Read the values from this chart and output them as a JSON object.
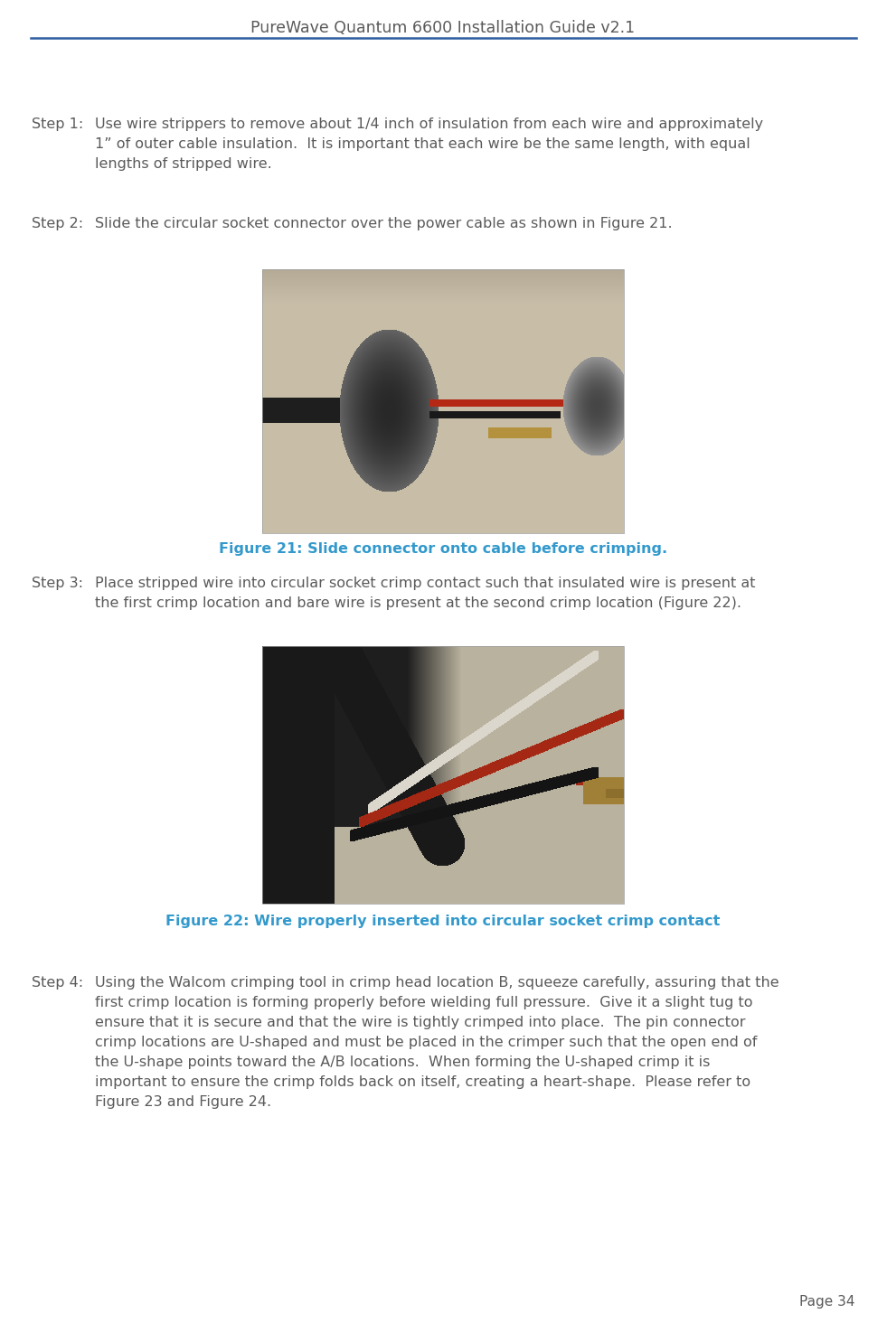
{
  "title": "PureWave Quantum 6600 Installation Guide v2.1",
  "page_number": "Page 34",
  "title_color": "#5A5A5A",
  "title_fontsize": 12.5,
  "line_color": "#2E5FA3",
  "text_color": "#5A5A5A",
  "figure_caption_color": "#3399CC",
  "body_fontsize": 11.5,
  "step_label_fontsize": 11.5,
  "page_num_fontsize": 11,
  "step1_label": "Step 1:",
  "step1_line1": "Use wire strippers to remove about 1/4 inch of insulation from each wire and approximately",
  "step1_line2": "1” of outer cable insulation.  It is important that each wire be the same length, with equal",
  "step1_line3": "lengths of stripped wire.",
  "step2_label": "Step 2:",
  "step2_text": "Slide the circular socket connector over the power cable as shown in Figure 21.",
  "fig21_caption": "Figure 21: Slide connector onto cable before crimping.",
  "step3_label": "Step 3:",
  "step3_line1": "Place stripped wire into circular socket crimp contact such that insulated wire is present at",
  "step3_line2": "the first crimp location and bare wire is present at the second crimp location (Figure 22).",
  "fig22_caption": "Figure 22: Wire properly inserted into circular socket crimp contact",
  "step4_label": "Step 4:",
  "step4_line1": "Using the Walcom crimping tool in crimp head location B, squeeze carefully, assuring that the",
  "step4_line2": "first crimp location is forming properly before wielding full pressure.  Give it a slight tug to",
  "step4_line3": "ensure that it is secure and that the wire is tightly crimped into place.  The pin connector",
  "step4_line4": "crimp locations are U-shaped and must be placed in the crimper such that the open end of",
  "step4_line5": "the U-shape points toward the A/B locations.  When forming the U-shaped crimp it is",
  "step4_line6": "important to ensure the crimp folds back on itself, creating a heart-shape.  Please refer to",
  "step4_line7": "Figure 23 and Figure 24.",
  "bg_color": "#FFFFFF",
  "image1_bg": "#C8B89A",
  "image1_bg2": "#B0A080",
  "image2_bg": "#B0A888"
}
